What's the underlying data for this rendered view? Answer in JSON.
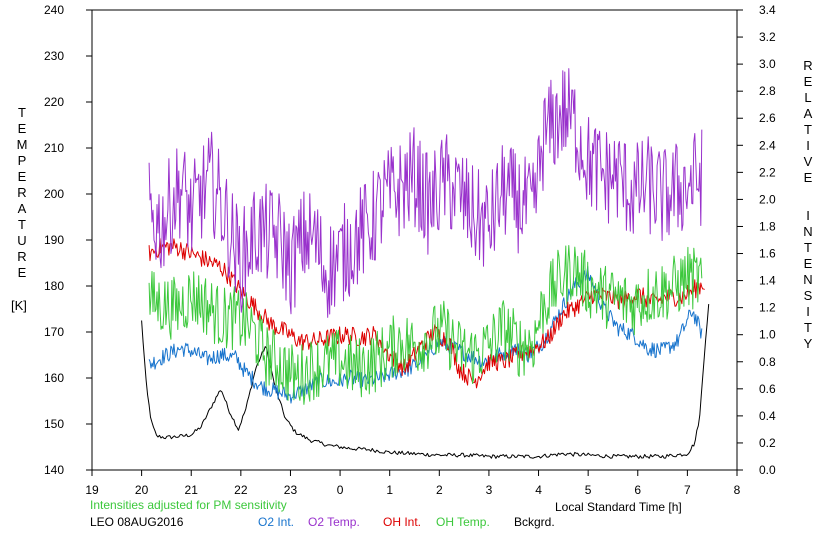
{
  "chart_data": {
    "type": "line",
    "left_axis": {
      "label": "TEMPERATURE",
      "unit": "[K]",
      "range": [
        140,
        240
      ],
      "ticks": [
        140,
        150,
        160,
        170,
        180,
        190,
        200,
        210,
        220,
        230,
        240
      ]
    },
    "right_axis": {
      "label": "RELATIVE INTENSITY",
      "range": [
        0.0,
        3.4
      ],
      "ticks": [
        "0.0",
        "0.2",
        "0.4",
        "0.6",
        "0.8",
        "1.0",
        "1.2",
        "1.4",
        "1.6",
        "1.8",
        "2.0",
        "2.2",
        "2.4",
        "2.6",
        "2.8",
        "3.0",
        "3.2",
        "3.4"
      ]
    },
    "x_axis": {
      "label": "Local Standard Time [h]",
      "ticks": [
        "19",
        "20",
        "21",
        "22",
        "23",
        "0",
        "1",
        "2",
        "3",
        "4",
        "5",
        "6",
        "7",
        "8"
      ],
      "range_hours": [
        19,
        32
      ]
    },
    "note": "Intensities adjusted for PM sensitivity",
    "station_date": "LEO 08AUG2016",
    "grid": false,
    "series": [
      {
        "name": "O2 Int.",
        "color": "#1874cd",
        "axis": "right",
        "x": [
          20.15,
          20.5,
          20.8,
          21.0,
          21.3,
          21.6,
          21.9,
          22.1,
          22.4,
          22.7,
          23.0,
          23.3,
          23.6,
          23.9,
          24.2,
          24.5,
          24.8,
          25.1,
          25.4,
          25.7,
          26.0,
          26.3,
          26.6,
          26.9,
          27.2,
          27.5,
          27.8,
          28.1,
          28.4,
          28.7,
          29.0,
          29.3,
          29.6,
          29.9,
          30.2,
          30.5,
          30.8,
          31.1,
          31.3
        ],
        "y": [
          0.78,
          0.85,
          0.9,
          0.88,
          0.82,
          0.85,
          0.83,
          0.72,
          0.62,
          0.58,
          0.55,
          0.6,
          0.66,
          0.65,
          0.68,
          0.66,
          0.68,
          0.72,
          0.75,
          0.82,
          0.95,
          0.9,
          0.85,
          0.8,
          0.85,
          0.9,
          0.85,
          0.95,
          1.15,
          1.35,
          1.45,
          1.2,
          1.05,
          1.0,
          0.9,
          0.88,
          0.95,
          1.18,
          1.0
        ]
      },
      {
        "name": "O2 Temp.",
        "color": "#9932cc",
        "axis": "left",
        "x": [
          20.15,
          20.4,
          20.6,
          20.8,
          21.0,
          21.2,
          21.4,
          21.6,
          21.8,
          22.0,
          22.3,
          22.8,
          23.0,
          23.3,
          23.5,
          23.7,
          24.0,
          24.3,
          24.6,
          24.9,
          25.2,
          25.5,
          25.8,
          26.1,
          26.4,
          26.7,
          27.0,
          27.3,
          27.6,
          27.9,
          28.1,
          28.3,
          28.5,
          28.7,
          29.0,
          29.3,
          29.6,
          29.9,
          30.2,
          30.5,
          30.8,
          31.0,
          31.3
        ],
        "y": [
          196,
          193,
          198,
          202,
          195,
          200,
          203,
          198,
          191,
          185,
          192,
          190,
          184,
          191,
          190,
          183,
          186,
          190,
          193,
          199,
          201,
          204,
          197,
          203,
          200,
          195,
          193,
          201,
          198,
          196,
          212,
          215,
          218,
          216,
          207,
          204,
          204,
          200,
          202,
          199,
          201,
          202,
          204
        ]
      },
      {
        "name": "OH Int.",
        "color": "#dd0000",
        "axis": "right",
        "x": [
          20.15,
          20.4,
          20.7,
          21.0,
          21.3,
          21.6,
          21.8,
          22.0,
          22.3,
          22.6,
          22.9,
          23.2,
          23.5,
          23.8,
          24.1,
          24.4,
          24.7,
          25.0,
          25.3,
          25.6,
          25.9,
          26.2,
          26.4,
          26.7,
          27.0,
          27.3,
          27.6,
          27.9,
          28.2,
          28.5,
          28.8,
          29.1,
          29.4,
          29.7,
          30.0,
          30.3,
          30.6,
          30.9,
          31.2,
          31.35
        ],
        "y": [
          1.6,
          1.65,
          1.65,
          1.6,
          1.55,
          1.5,
          1.42,
          1.32,
          1.2,
          1.08,
          1.02,
          0.95,
          0.95,
          0.98,
          1.0,
          0.98,
          1.0,
          0.85,
          0.75,
          0.9,
          1.02,
          0.95,
          0.75,
          0.65,
          0.8,
          0.8,
          0.85,
          0.9,
          0.97,
          1.15,
          1.22,
          1.3,
          1.28,
          1.25,
          1.3,
          1.24,
          1.28,
          1.28,
          1.35,
          1.38
        ]
      },
      {
        "name": "OH Temp.",
        "color": "#3cc83c",
        "axis": "left",
        "x": [
          20.15,
          20.4,
          20.7,
          21.0,
          21.3,
          21.6,
          21.9,
          22.2,
          22.5,
          22.8,
          23.1,
          23.4,
          23.7,
          24.0,
          24.3,
          24.6,
          24.9,
          25.2,
          25.5,
          25.8,
          26.1,
          26.4,
          26.7,
          27.0,
          27.3,
          27.6,
          27.9,
          28.1,
          28.4,
          28.7,
          29.0,
          29.3,
          29.6,
          29.9,
          30.2,
          30.5,
          30.8,
          31.0,
          31.3
        ],
        "y": [
          177,
          176,
          175,
          178,
          176,
          173,
          173,
          171,
          165,
          163,
          160,
          162,
          163,
          164,
          162,
          163,
          165,
          168,
          167,
          169,
          170,
          166,
          165,
          167,
          171,
          167,
          168,
          176,
          181,
          184,
          180,
          178,
          177,
          176,
          178,
          179,
          180,
          182,
          181
        ]
      },
      {
        "name": "Bckgrd.",
        "color": "#000000",
        "axis": "right",
        "x": [
          20.0,
          20.1,
          20.2,
          20.3,
          20.5,
          20.8,
          21.0,
          21.2,
          21.45,
          21.6,
          21.75,
          21.95,
          22.1,
          22.3,
          22.5,
          22.7,
          22.9,
          23.1,
          23.4,
          23.8,
          24.2,
          24.6,
          25.0,
          25.5,
          26.0,
          26.5,
          27.0,
          27.5,
          28.0,
          28.5,
          29.0,
          29.5,
          30.0,
          30.5,
          31.0,
          31.15,
          31.25,
          31.35,
          31.45
        ],
        "y": [
          1.1,
          0.6,
          0.35,
          0.25,
          0.24,
          0.25,
          0.26,
          0.32,
          0.5,
          0.6,
          0.45,
          0.3,
          0.45,
          0.75,
          0.92,
          0.6,
          0.38,
          0.28,
          0.22,
          0.18,
          0.16,
          0.15,
          0.13,
          0.12,
          0.11,
          0.11,
          0.1,
          0.1,
          0.1,
          0.12,
          0.11,
          0.1,
          0.1,
          0.1,
          0.12,
          0.2,
          0.4,
          0.9,
          1.3
        ]
      }
    ]
  }
}
